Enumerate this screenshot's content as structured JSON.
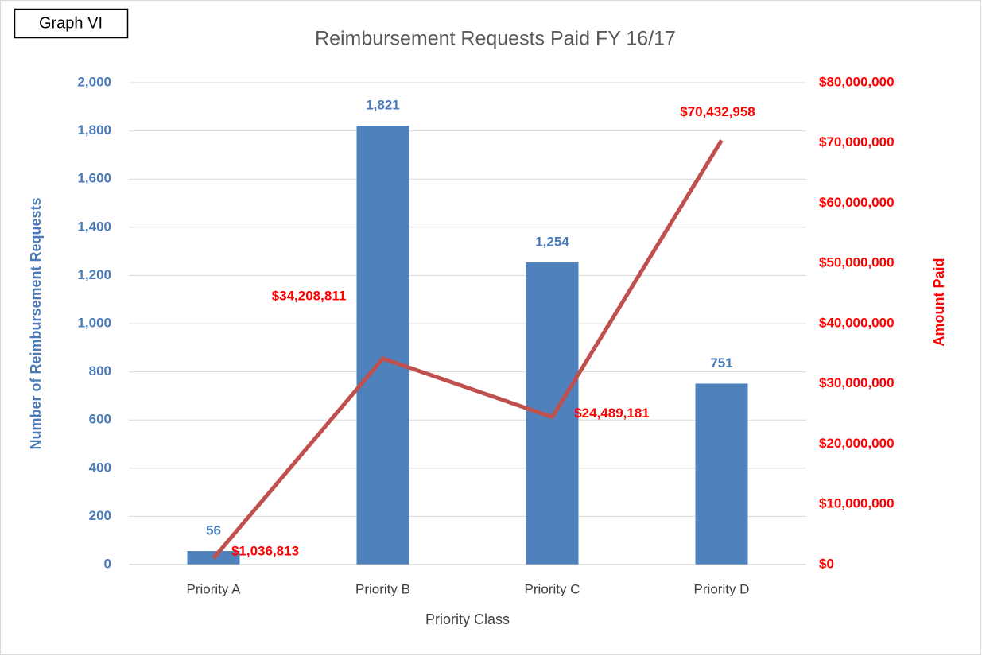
{
  "chart_data": {
    "type": "bar_line",
    "title": "Reimbursement Requests Paid FY 16/17",
    "annotation": "Graph VI",
    "x_label": "Priority Class",
    "y_label": "Number of Reimbursement Requests",
    "y2_label": "Amount Paid",
    "categories": [
      "Priority A",
      "Priority B",
      "Priority C",
      "Priority D"
    ],
    "series": [
      {
        "type": "bar",
        "color": "#4f81bd",
        "values": [
          56,
          1821,
          1254,
          751
        ],
        "value_labels": [
          "56",
          "1,821",
          "1,254",
          "751"
        ]
      },
      {
        "type": "line",
        "axis": "y2",
        "color": "#c0504d",
        "values": [
          1036813,
          34208811,
          24489181,
          70432958
        ],
        "value_labels": [
          "$1,036,813",
          "$34,208,811",
          "$24,489,181",
          "$70,432,958"
        ]
      }
    ],
    "ylim": [
      0,
      2000
    ],
    "yticks": [
      0,
      200,
      400,
      600,
      800,
      {
        "value": 1000,
        "label": "1,000"
      },
      {
        "value": 1200,
        "label": "1,200"
      },
      {
        "value": 1400,
        "label": "1,400"
      },
      {
        "value": 1600,
        "label": "1,600"
      },
      {
        "value": 1800,
        "label": "1,800"
      },
      {
        "value": 2000,
        "label": "2,000"
      }
    ],
    "y2lim": [
      0,
      80000000
    ],
    "y2ticks": [
      {
        "value": 0,
        "label": "$0"
      },
      {
        "value": 10000000,
        "label": "$10,000,000"
      },
      {
        "value": 20000000,
        "label": "$20,000,000"
      },
      {
        "value": 30000000,
        "label": "$30,000,000"
      },
      {
        "value": 40000000,
        "label": "$40,000,000"
      },
      {
        "value": 50000000,
        "label": "$50,000,000"
      },
      {
        "value": 60000000,
        "label": "$60,000,000"
      },
      {
        "value": 70000000,
        "label": "$70,000,000"
      },
      {
        "value": 80000000,
        "label": "$80,000,000"
      }
    ],
    "grid": true,
    "y_color": "#4a7ab8",
    "y2_color": "#ff0000"
  }
}
